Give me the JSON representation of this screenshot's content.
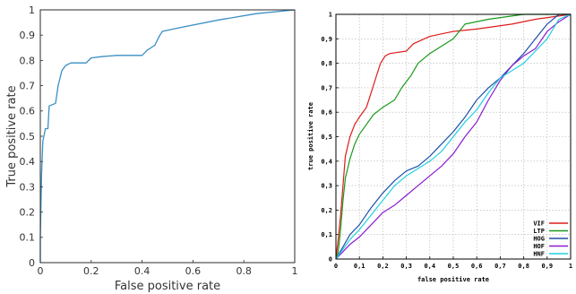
{
  "chart_data": [
    {
      "type": "line",
      "title": "",
      "xlabel": "False positive rate",
      "ylabel": "True positive rate",
      "xlim": [
        0,
        1
      ],
      "ylim": [
        0,
        1
      ],
      "x_ticks": [
        "0",
        "0.2",
        "0.4",
        "0.6",
        "0.8",
        "1"
      ],
      "y_ticks": [
        "0",
        "0.1",
        "0.2",
        "0.3",
        "0.4",
        "0.5",
        "0.6",
        "0.7",
        "0.8",
        "0.9",
        "1"
      ],
      "grid": false,
      "series": [
        {
          "color": "#3a8fc4",
          "points": [
            [
              0,
              0
            ],
            [
              0,
              0.1
            ],
            [
              0.005,
              0.35
            ],
            [
              0.01,
              0.48
            ],
            [
              0.02,
              0.53
            ],
            [
              0.03,
              0.53
            ],
            [
              0.035,
              0.62
            ],
            [
              0.06,
              0.63
            ],
            [
              0.07,
              0.7
            ],
            [
              0.085,
              0.76
            ],
            [
              0.1,
              0.78
            ],
            [
              0.12,
              0.79
            ],
            [
              0.18,
              0.79
            ],
            [
              0.2,
              0.81
            ],
            [
              0.24,
              0.815
            ],
            [
              0.3,
              0.82
            ],
            [
              0.4,
              0.82
            ],
            [
              0.42,
              0.84
            ],
            [
              0.45,
              0.86
            ],
            [
              0.46,
              0.88
            ],
            [
              0.47,
              0.9
            ],
            [
              0.48,
              0.915
            ],
            [
              0.55,
              0.93
            ],
            [
              0.7,
              0.96
            ],
            [
              0.85,
              0.985
            ],
            [
              1,
              1
            ]
          ]
        }
      ]
    },
    {
      "type": "line",
      "title": "",
      "xlabel": "false positive rate",
      "ylabel": "true positive rate",
      "xlim": [
        0,
        1
      ],
      "ylim": [
        0,
        1
      ],
      "x_ticks": [
        "0",
        "0,1",
        "0,2",
        "0,3",
        "0,4",
        "0,5",
        "0,6",
        "0,7",
        "0,8",
        "0,9",
        "1"
      ],
      "y_ticks": [
        "0",
        "0,1",
        "0,2",
        "0,3",
        "0,4",
        "0,5",
        "0,6",
        "0,7",
        "0,8",
        "0,9",
        "1"
      ],
      "grid": true,
      "legend_position": "bottom-right",
      "series": [
        {
          "name": "VIF",
          "color": "#dd1c1c",
          "points": [
            [
              0,
              0
            ],
            [
              0.01,
              0.08
            ],
            [
              0.02,
              0.18
            ],
            [
              0.03,
              0.3
            ],
            [
              0.04,
              0.42
            ],
            [
              0.06,
              0.5
            ],
            [
              0.08,
              0.55
            ],
            [
              0.1,
              0.58
            ],
            [
              0.13,
              0.62
            ],
            [
              0.15,
              0.68
            ],
            [
              0.17,
              0.74
            ],
            [
              0.19,
              0.8
            ],
            [
              0.21,
              0.83
            ],
            [
              0.23,
              0.84
            ],
            [
              0.3,
              0.85
            ],
            [
              0.33,
              0.88
            ],
            [
              0.4,
              0.91
            ],
            [
              0.5,
              0.93
            ],
            [
              0.6,
              0.94
            ],
            [
              0.75,
              0.96
            ],
            [
              0.85,
              0.98
            ],
            [
              1,
              1
            ]
          ]
        },
        {
          "name": "LTP",
          "color": "#1a9a1a",
          "points": [
            [
              0,
              0
            ],
            [
              0.01,
              0.03
            ],
            [
              0.02,
              0.12
            ],
            [
              0.03,
              0.24
            ],
            [
              0.04,
              0.33
            ],
            [
              0.06,
              0.41
            ],
            [
              0.08,
              0.47
            ],
            [
              0.1,
              0.51
            ],
            [
              0.13,
              0.55
            ],
            [
              0.16,
              0.59
            ],
            [
              0.2,
              0.62
            ],
            [
              0.25,
              0.65
            ],
            [
              0.28,
              0.7
            ],
            [
              0.32,
              0.75
            ],
            [
              0.35,
              0.8
            ],
            [
              0.4,
              0.84
            ],
            [
              0.45,
              0.87
            ],
            [
              0.5,
              0.9
            ],
            [
              0.55,
              0.96
            ],
            [
              0.65,
              0.98
            ],
            [
              0.8,
              1
            ],
            [
              1,
              1
            ]
          ]
        },
        {
          "name": "HOG",
          "color": "#1f4fa8",
          "points": [
            [
              0,
              0
            ],
            [
              0.03,
              0.05
            ],
            [
              0.06,
              0.1
            ],
            [
              0.1,
              0.14
            ],
            [
              0.15,
              0.21
            ],
            [
              0.2,
              0.27
            ],
            [
              0.25,
              0.32
            ],
            [
              0.3,
              0.36
            ],
            [
              0.35,
              0.38
            ],
            [
              0.4,
              0.42
            ],
            [
              0.45,
              0.47
            ],
            [
              0.5,
              0.52
            ],
            [
              0.55,
              0.58
            ],
            [
              0.6,
              0.65
            ],
            [
              0.65,
              0.7
            ],
            [
              0.7,
              0.74
            ],
            [
              0.75,
              0.79
            ],
            [
              0.8,
              0.84
            ],
            [
              0.85,
              0.9
            ],
            [
              0.9,
              0.96
            ],
            [
              0.95,
              1
            ],
            [
              1,
              1
            ]
          ]
        },
        {
          "name": "HOF",
          "color": "#8a1bd0",
          "points": [
            [
              0,
              0
            ],
            [
              0.03,
              0.03
            ],
            [
              0.06,
              0.06
            ],
            [
              0.1,
              0.09
            ],
            [
              0.15,
              0.14
            ],
            [
              0.2,
              0.19
            ],
            [
              0.25,
              0.22
            ],
            [
              0.3,
              0.26
            ],
            [
              0.35,
              0.3
            ],
            [
              0.4,
              0.34
            ],
            [
              0.45,
              0.38
            ],
            [
              0.5,
              0.43
            ],
            [
              0.55,
              0.5
            ],
            [
              0.6,
              0.56
            ],
            [
              0.65,
              0.65
            ],
            [
              0.7,
              0.73
            ],
            [
              0.75,
              0.79
            ],
            [
              0.8,
              0.83
            ],
            [
              0.85,
              0.86
            ],
            [
              0.9,
              0.93
            ],
            [
              0.95,
              0.97
            ],
            [
              1,
              1
            ]
          ]
        },
        {
          "name": "HNF",
          "color": "#22cfe0",
          "points": [
            [
              0,
              0
            ],
            [
              0.03,
              0.04
            ],
            [
              0.06,
              0.08
            ],
            [
              0.1,
              0.12
            ],
            [
              0.15,
              0.18
            ],
            [
              0.2,
              0.24
            ],
            [
              0.25,
              0.3
            ],
            [
              0.3,
              0.34
            ],
            [
              0.35,
              0.37
            ],
            [
              0.4,
              0.4
            ],
            [
              0.45,
              0.44
            ],
            [
              0.5,
              0.5
            ],
            [
              0.55,
              0.56
            ],
            [
              0.6,
              0.61
            ],
            [
              0.65,
              0.68
            ],
            [
              0.7,
              0.74
            ],
            [
              0.75,
              0.77
            ],
            [
              0.8,
              0.8
            ],
            [
              0.85,
              0.85
            ],
            [
              0.9,
              0.9
            ],
            [
              0.95,
              0.98
            ],
            [
              1,
              1
            ]
          ]
        }
      ]
    }
  ]
}
